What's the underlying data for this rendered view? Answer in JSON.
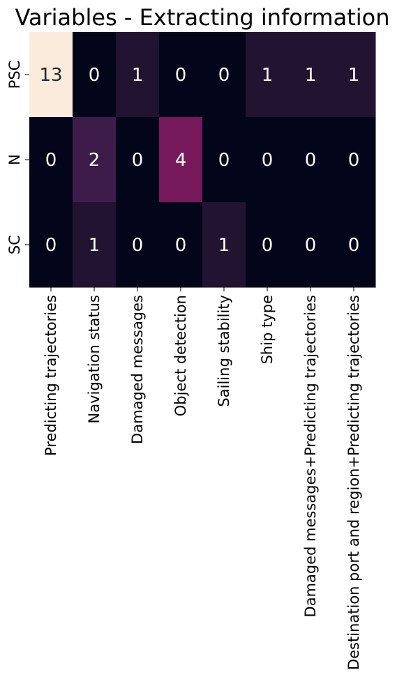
{
  "chart_data": {
    "type": "heatmap",
    "title": "Variables - Extracting information",
    "xlabel": "",
    "ylabel": "",
    "rows": [
      "PSC",
      "N",
      "SC"
    ],
    "columns": [
      "Predicting trajectories",
      "Navigation status",
      "Damaged messages",
      "Object detection",
      "Sailing stability",
      "Ship type",
      "Damaged messages+Predicting trajectories",
      "Destination port and region+Predicting trajectories"
    ],
    "values": [
      [
        13,
        0,
        1,
        0,
        0,
        1,
        1,
        1
      ],
      [
        0,
        2,
        0,
        4,
        0,
        0,
        0,
        0
      ],
      [
        0,
        1,
        0,
        0,
        1,
        0,
        0,
        0
      ]
    ],
    "colorbar": false,
    "annotate": true,
    "colors": {
      "0": "#03051a",
      "1": "#221331",
      "2": "#3d1c4a",
      "4": "#76195a",
      "13": "#faebdd"
    },
    "annotation_colors": {
      "dark_cell": "#ffffff",
      "light_cell": "#262626"
    }
  }
}
